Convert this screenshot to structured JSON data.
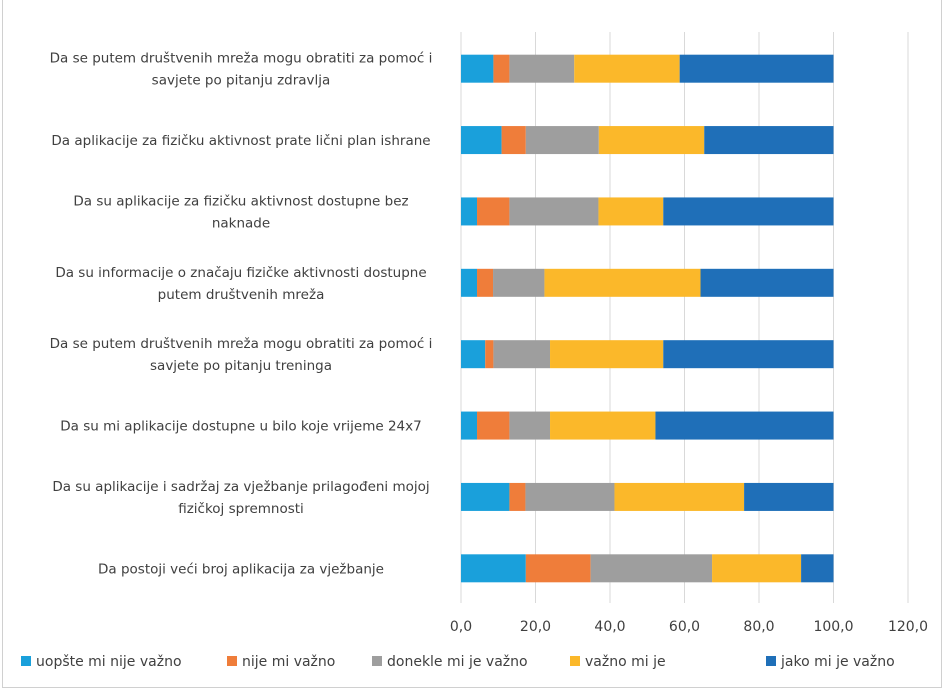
{
  "chart_data": {
    "type": "bar",
    "orientation": "horizontal",
    "stacked": true,
    "title": "",
    "xlim": [
      0,
      120
    ],
    "xticks": [
      "0,0",
      "20,0",
      "40,0",
      "60,0",
      "80,0",
      "100,0",
      "120,0"
    ],
    "grid": true,
    "legend_position": "bottom",
    "categories": [
      [
        "Da se putem društvenih mreža mogu obratiti za pomoć i",
        "savjete po pitanju zdravlja"
      ],
      [
        "Da aplikacije za fizičku aktivnost prate lični plan ishrane"
      ],
      [
        "Da su aplikacije za fizičku aktivnost dostupne bez",
        "naknade"
      ],
      [
        "Da su informacije o značaju fizičke aktivnosti dostupne",
        "putem društvenih mreža"
      ],
      [
        "Da se putem društvenih mreža mogu obratiti za pomoć i",
        "savjete po pitanju treninga"
      ],
      [
        "Da su mi aplikacije dostupne u bilo koje vrijeme 24x7"
      ],
      [
        "Da su aplikacije i sadržaj za vježbanje prilagođeni mojoj",
        "fizičkoj spremnosti"
      ],
      [
        "Da postoji veći broj aplikacija za vježbanje"
      ]
    ],
    "series": [
      {
        "name": "uopšte mi nije važno",
        "color": "#1aa0db",
        "values": [
          8.7,
          10.9,
          4.3,
          4.3,
          6.5,
          4.3,
          13.0,
          17.4
        ]
      },
      {
        "name": "nije mi važno",
        "color": "#ef7d3a",
        "values": [
          4.3,
          6.5,
          8.7,
          4.3,
          2.2,
          8.7,
          4.3,
          17.4
        ]
      },
      {
        "name": "donekle mi je važno",
        "color": "#9e9e9e",
        "values": [
          17.4,
          19.6,
          23.9,
          13.8,
          15.2,
          10.9,
          23.9,
          32.6
        ]
      },
      {
        "name": "važno mi je",
        "color": "#fbb82a",
        "values": [
          28.3,
          28.3,
          17.4,
          41.9,
          30.4,
          28.3,
          34.8,
          23.9
        ]
      },
      {
        "name": "jako mi je važno",
        "color": "#1f6fb8",
        "values": [
          41.3,
          34.7,
          45.7,
          35.7,
          45.7,
          47.8,
          24.0,
          8.7
        ]
      }
    ]
  }
}
